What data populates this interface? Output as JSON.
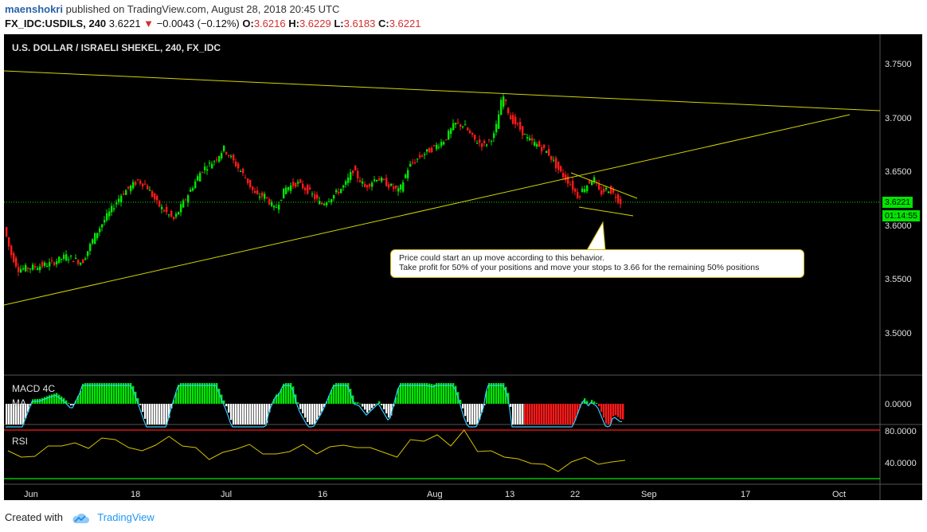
{
  "header": {
    "user": "maenshokri",
    "published": "published on TradingView.com, August 28, 2018 20:45 UTC",
    "symbol": "FX_IDC:USDILS, 240",
    "last": "3.6221",
    "change": "−0.0043 (−0.12%)",
    "open_label": "O:",
    "open": "3.6216",
    "high_label": "H:",
    "high": "3.6229",
    "low_label": "L:",
    "low": "3.6183",
    "close_label": "C:",
    "close": "3.6221"
  },
  "chart_title": "U.S. DOLLAR / ISRAELI SHEKEL, 240, FX_IDC",
  "price_axis": [
    "3.7500",
    "3.7000",
    "3.6500",
    "3.6000",
    "3.5500",
    "3.5000"
  ],
  "price_tag": "3.6221",
  "countdown_tag": "01:14:55",
  "macd": {
    "label": "MACD 4C",
    "sublabel": "MA",
    "axis": "0.0000"
  },
  "rsi": {
    "label": "RSI",
    "axis_top": "80.0000",
    "axis_bottom": "40.0000"
  },
  "x_axis": [
    "Jun",
    "18",
    "Jul",
    "16",
    "Aug",
    "13",
    "22",
    "Sep",
    "17",
    "Oct"
  ],
  "annotation": {
    "line1": "Price could start an up move according to this behavior.",
    "line2": "Take profit for 50% of your positions and move your stops to 3.66 for the remaining 50% positions"
  },
  "footer": {
    "created": "Created with",
    "brand": "TradingView"
  },
  "colors": {
    "up": "#00e600",
    "down": "#ff1a1a",
    "trendline": "#d4d400",
    "accent": "#2196f3"
  },
  "chart_data": {
    "type": "line",
    "price_ylim": [
      3.46,
      3.77
    ],
    "path": [
      [
        0,
        3.605
      ],
      [
        10,
        3.575
      ],
      [
        20,
        3.56
      ],
      [
        40,
        3.562
      ],
      [
        60,
        3.565
      ],
      [
        80,
        3.572
      ],
      [
        100,
        3.566
      ],
      [
        115,
        3.59
      ],
      [
        130,
        3.608
      ],
      [
        150,
        3.63
      ],
      [
        170,
        3.642
      ],
      [
        180,
        3.638
      ],
      [
        195,
        3.62
      ],
      [
        215,
        3.606
      ],
      [
        232,
        3.628
      ],
      [
        250,
        3.652
      ],
      [
        265,
        3.66
      ],
      [
        278,
        3.672
      ],
      [
        290,
        3.66
      ],
      [
        305,
        3.645
      ],
      [
        318,
        3.628
      ],
      [
        330,
        3.628
      ],
      [
        342,
        3.615
      ],
      [
        355,
        3.635
      ],
      [
        370,
        3.64
      ],
      [
        385,
        3.632
      ],
      [
        400,
        3.62
      ],
      [
        415,
        3.628
      ],
      [
        430,
        3.638
      ],
      [
        440,
        3.652
      ],
      [
        455,
        3.636
      ],
      [
        470,
        3.645
      ],
      [
        485,
        3.638
      ],
      [
        498,
        3.632
      ],
      [
        510,
        3.655
      ],
      [
        525,
        3.665
      ],
      [
        540,
        3.672
      ],
      [
        555,
        3.68
      ],
      [
        568,
        3.695
      ],
      [
        580,
        3.693
      ],
      [
        592,
        3.68
      ],
      [
        605,
        3.675
      ],
      [
        618,
        3.685
      ],
      [
        628,
        3.722
      ],
      [
        638,
        3.7
      ],
      [
        648,
        3.692
      ],
      [
        660,
        3.68
      ],
      [
        672,
        3.675
      ],
      [
        685,
        3.668
      ],
      [
        700,
        3.65
      ],
      [
        712,
        3.64
      ],
      [
        722,
        3.628
      ],
      [
        732,
        3.637
      ],
      [
        742,
        3.645
      ],
      [
        750,
        3.63
      ],
      [
        760,
        3.635
      ],
      [
        770,
        3.628
      ],
      [
        775,
        3.6221
      ]
    ],
    "rsi": [
      52,
      48,
      45,
      62,
      58,
      66,
      55,
      72,
      66,
      60,
      52,
      63,
      70,
      62,
      56,
      45,
      50,
      58,
      60,
      52,
      48,
      55,
      60,
      52,
      57,
      63,
      56,
      60,
      50,
      48,
      66,
      68,
      72,
      62,
      78,
      55,
      52,
      48,
      42,
      40,
      35,
      30,
      38,
      48,
      35,
      42,
      40
    ]
  }
}
